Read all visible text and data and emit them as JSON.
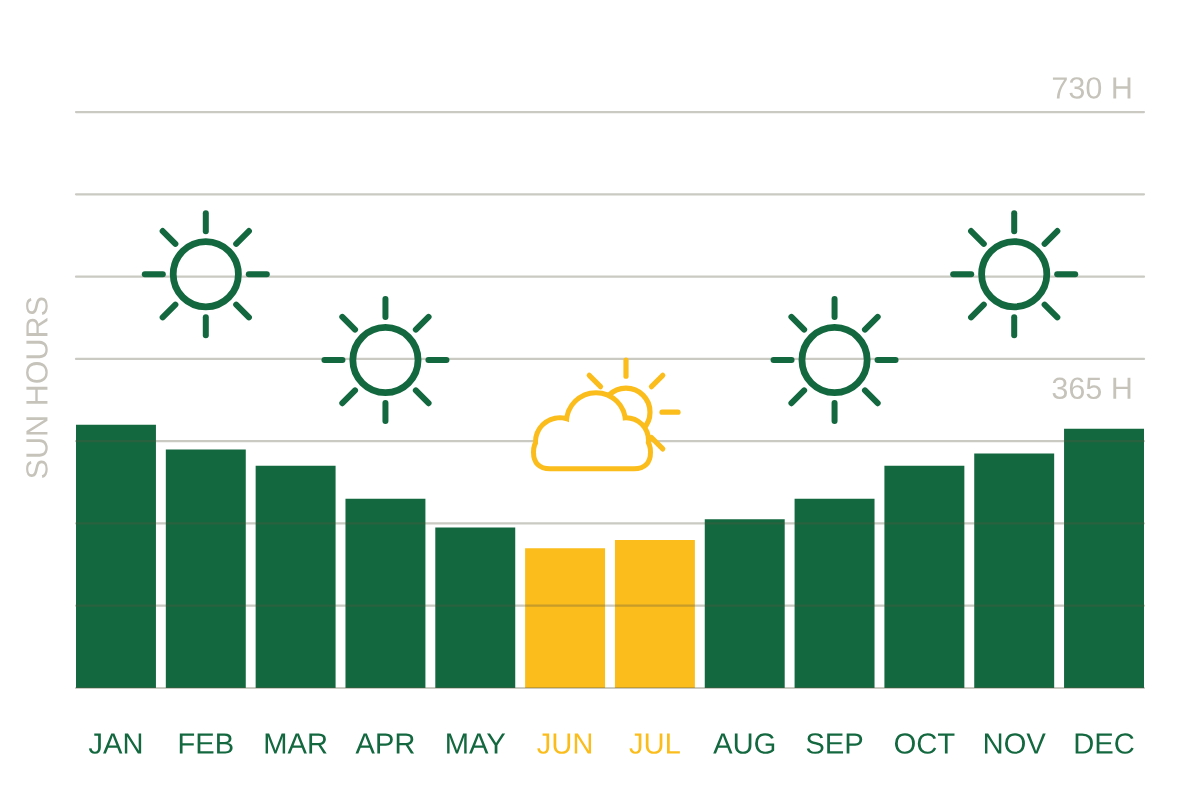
{
  "chart_data": {
    "type": "bar",
    "ylabel": "SUN HOURS",
    "categories": [
      "JAN",
      "FEB",
      "MAR",
      "APR",
      "MAY",
      "JUN",
      "JUL",
      "AUG",
      "SEP",
      "OCT",
      "NOV",
      "DEC"
    ],
    "values": [
      320,
      290,
      270,
      230,
      195,
      170,
      180,
      205,
      230,
      270,
      285,
      315
    ],
    "colors": [
      "#13683f",
      "#13683f",
      "#13683f",
      "#13683f",
      "#13683f",
      "#fbbd1c",
      "#fbbd1c",
      "#13683f",
      "#13683f",
      "#13683f",
      "#13683f",
      "#13683f"
    ],
    "ylim": [
      0,
      730
    ],
    "yticks": [
      {
        "value": 0,
        "label": null
      },
      {
        "value": 100,
        "label": null
      },
      {
        "value": 200,
        "label": null
      },
      {
        "value": 300,
        "label": null
      },
      {
        "value": 365,
        "label": "365 H"
      },
      {
        "value": 400,
        "label": null
      },
      {
        "value": 500,
        "label": null
      },
      {
        "value": 600,
        "label": null
      },
      {
        "value": 700,
        "label": null
      },
      {
        "value": 730,
        "label": "730 H"
      }
    ],
    "grid": "y"
  }
}
